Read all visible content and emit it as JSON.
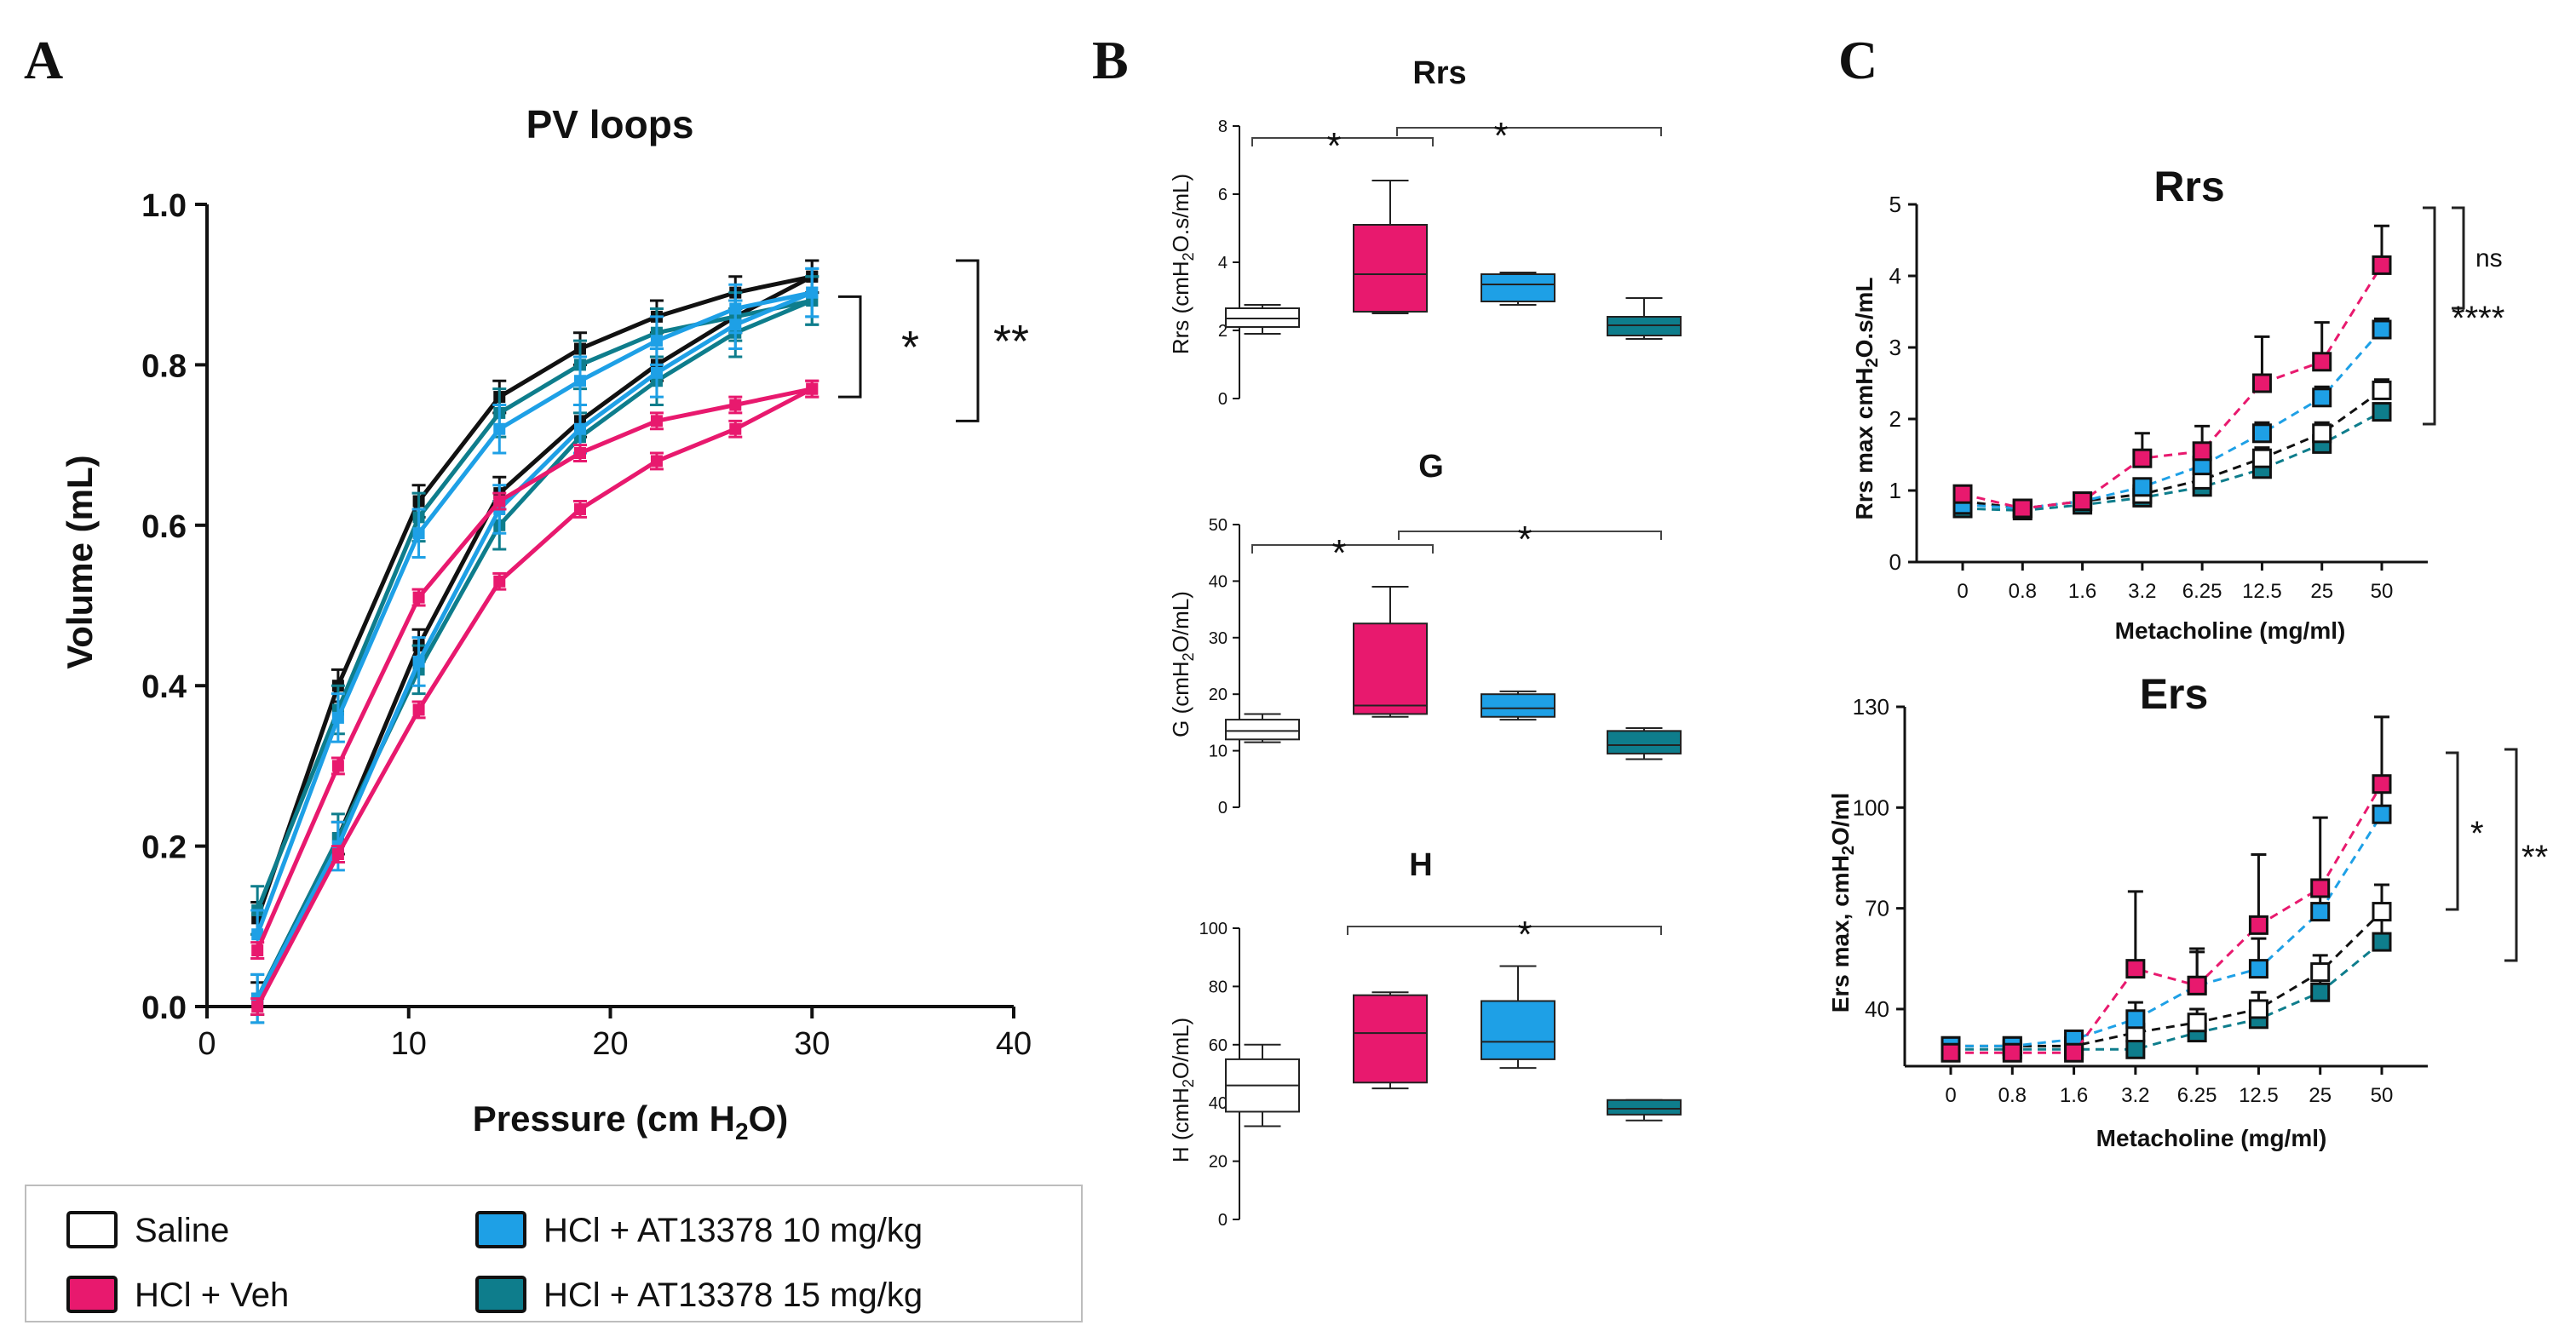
{
  "panel_letters": {
    "a": "A",
    "b": "B",
    "c": "C"
  },
  "colors": {
    "saline": "#ffffff",
    "veh": "#e8196e",
    "at10": "#1ea0e6",
    "at15": "#0e7d8c",
    "saline_line": "#111111"
  },
  "legend": [
    {
      "label": "Saline",
      "color": "#ffffff"
    },
    {
      "label": "HCl + Veh",
      "color": "#e8196e"
    },
    {
      "label": "HCl + AT13378 10 mg/kg",
      "color": "#1ea0e6"
    },
    {
      "label": "HCl + AT13378 15 mg/kg",
      "color": "#0e7d8c"
    }
  ],
  "chart_data": [
    {
      "id": "pv",
      "type": "line",
      "title": "PV loops",
      "xlabel": "Pressure (cm H",
      "xlabel_sub": "2",
      "xlabel_end": "O)",
      "ylabel": "Volume (mL)",
      "xlim": [
        0,
        40
      ],
      "ylim": [
        0,
        1.0
      ],
      "xticks": [
        "0",
        "10",
        "20",
        "30",
        "40"
      ],
      "yticks": [
        "0.0",
        "0.2",
        "0.4",
        "0.6",
        "0.8",
        "1.0"
      ],
      "sig": [
        "*",
        "**"
      ],
      "series": [
        {
          "name": "Saline inflation",
          "group": "saline",
          "x": [
            2.5,
            6.5,
            10.5,
            14.5,
            18.5,
            22.3,
            26.2,
            30
          ],
          "values": [
            0.11,
            0.4,
            0.63,
            0.76,
            0.82,
            0.86,
            0.89,
            0.91
          ],
          "err": 0.02
        },
        {
          "name": "Saline deflation",
          "group": "saline",
          "x": [
            2.5,
            6.5,
            10.5,
            14.5,
            18.5,
            22.3,
            26.2,
            30
          ],
          "values": [
            0.01,
            0.21,
            0.45,
            0.64,
            0.73,
            0.8,
            0.86,
            0.91
          ],
          "err": 0.02
        },
        {
          "name": "HCl + Veh inflation",
          "group": "veh",
          "x": [
            2.5,
            6.5,
            10.5,
            14.5,
            18.5,
            22.3,
            26.2,
            30
          ],
          "values": [
            0.07,
            0.3,
            0.51,
            0.63,
            0.69,
            0.73,
            0.75,
            0.77
          ],
          "err": 0.01
        },
        {
          "name": "HCl + Veh deflation",
          "group": "veh",
          "x": [
            2.5,
            6.5,
            10.5,
            14.5,
            18.5,
            22.3,
            26.2,
            30
          ],
          "values": [
            0.0,
            0.19,
            0.37,
            0.53,
            0.62,
            0.68,
            0.72,
            0.77
          ],
          "err": 0.01
        },
        {
          "name": "AT13378 10 mg/kg inflation",
          "group": "at10",
          "x": [
            2.5,
            6.5,
            10.5,
            14.5,
            18.5,
            22.3,
            26.2,
            30
          ],
          "values": [
            0.09,
            0.36,
            0.59,
            0.72,
            0.78,
            0.83,
            0.87,
            0.89
          ],
          "err": 0.03
        },
        {
          "name": "AT13378 10 mg/kg deflation",
          "group": "at10",
          "x": [
            2.5,
            6.5,
            10.5,
            14.5,
            18.5,
            22.3,
            26.2,
            30
          ],
          "values": [
            0.01,
            0.2,
            0.43,
            0.62,
            0.72,
            0.79,
            0.85,
            0.89
          ],
          "err": 0.03
        },
        {
          "name": "AT13378 15 mg/kg inflation",
          "group": "at15",
          "x": [
            2.5,
            6.5,
            10.5,
            14.5,
            18.5,
            22.3,
            26.2,
            30
          ],
          "values": [
            0.12,
            0.37,
            0.61,
            0.74,
            0.8,
            0.84,
            0.86,
            0.88
          ],
          "err": 0.03
        },
        {
          "name": "AT13378 15 mg/kg deflation",
          "group": "at15",
          "x": [
            2.5,
            6.5,
            10.5,
            14.5,
            18.5,
            22.3,
            26.2,
            30
          ],
          "values": [
            0.01,
            0.21,
            0.42,
            0.6,
            0.71,
            0.78,
            0.84,
            0.88
          ],
          "err": 0.03
        }
      ]
    },
    {
      "id": "rrs_box",
      "type": "box",
      "title": "Rrs",
      "ylabel": "Rrs  (cmH",
      "ylabel_sub": "2",
      "ylabel_end": "O.s/mL)",
      "ylim": [
        0,
        8
      ],
      "yticks": [
        "0",
        "2",
        "4",
        "6",
        "8"
      ],
      "sig": [
        "*",
        "*"
      ],
      "groups": [
        {
          "name": "Saline",
          "min": 1.9,
          "q1": 2.1,
          "median": 2.35,
          "q3": 2.65,
          "max": 2.75
        },
        {
          "name": "HCl + Veh",
          "min": 2.5,
          "q1": 2.55,
          "median": 3.65,
          "q3": 5.1,
          "max": 6.4
        },
        {
          "name": "HCl + AT13378 10 mg/kg",
          "min": 2.75,
          "q1": 2.85,
          "median": 3.35,
          "q3": 3.65,
          "max": 3.7
        },
        {
          "name": "HCl + AT13378 15 mg/kg",
          "min": 1.75,
          "q1": 1.85,
          "median": 2.15,
          "q3": 2.4,
          "max": 2.95
        }
      ]
    },
    {
      "id": "g_box",
      "type": "box",
      "title": "G",
      "ylabel": "G (cmH",
      "ylabel_sub": "2",
      "ylabel_end": "O/mL)",
      "ylim": [
        0,
        50
      ],
      "yticks": [
        "0",
        "10",
        "20",
        "30",
        "40",
        "50"
      ],
      "sig": [
        "*",
        "*"
      ],
      "groups": [
        {
          "name": "Saline",
          "min": 11.5,
          "q1": 12,
          "median": 13.5,
          "q3": 15.5,
          "max": 16.5
        },
        {
          "name": "HCl + Veh",
          "min": 16,
          "q1": 16.5,
          "median": 18,
          "q3": 32.5,
          "max": 39
        },
        {
          "name": "HCl + AT13378 10 mg/kg",
          "min": 15.5,
          "q1": 16,
          "median": 17.5,
          "q3": 20,
          "max": 20.5
        },
        {
          "name": "HCl + AT13378 15 mg/kg",
          "min": 8.5,
          "q1": 9.5,
          "median": 11,
          "q3": 13.5,
          "max": 14
        }
      ]
    },
    {
      "id": "h_box",
      "type": "box",
      "title": "H",
      "ylabel": "H (cmH",
      "ylabel_sub": "2",
      "ylabel_end": "O/mL)",
      "ylim": [
        0,
        100
      ],
      "yticks": [
        "0",
        "20",
        "40",
        "60",
        "80",
        "100"
      ],
      "sig": [
        "*"
      ],
      "groups": [
        {
          "name": "Saline",
          "min": 32,
          "q1": 37,
          "median": 46,
          "q3": 55,
          "max": 60
        },
        {
          "name": "HCl + Veh",
          "min": 45,
          "q1": 47,
          "median": 64,
          "q3": 77,
          "max": 78
        },
        {
          "name": "HCl + AT13378 10 mg/kg",
          "min": 52,
          "q1": 55,
          "median": 61,
          "q3": 75,
          "max": 87
        },
        {
          "name": "HCl + AT13378 15 mg/kg",
          "min": 34,
          "q1": 36,
          "median": 38,
          "q3": 41,
          "max": 41
        }
      ]
    },
    {
      "id": "rrs_mch",
      "type": "line",
      "title": "Rrs",
      "xlabel": "Metacholine (mg/ml)",
      "ylabel": "Rrs max cmH",
      "ylabel_sub": "2",
      "ylabel_end": "O.s/mL",
      "categories": [
        "0",
        "0.8",
        "1.6",
        "3.2",
        "6.25",
        "12.5",
        "25",
        "50"
      ],
      "ylim": [
        0,
        5
      ],
      "yticks": [
        "0",
        "1",
        "2",
        "3",
        "4",
        "5"
      ],
      "sig": [
        "ns",
        "****"
      ],
      "series": [
        {
          "name": "Saline",
          "group": "saline",
          "values": [
            0.85,
            0.75,
            0.85,
            0.95,
            1.15,
            1.45,
            1.8,
            2.4
          ],
          "err": [
            0.05,
            0.04,
            0.05,
            0.1,
            0.1,
            0.15,
            0.15,
            0.15
          ]
        },
        {
          "name": "HCl + Veh",
          "group": "veh",
          "values": [
            0.95,
            0.75,
            0.85,
            1.45,
            1.55,
            2.5,
            2.8,
            4.15
          ],
          "err": [
            0.05,
            0.05,
            0.05,
            0.35,
            0.35,
            0.65,
            0.55,
            0.55
          ]
        },
        {
          "name": "HCl + AT13378 10 mg/kg",
          "group": "at10",
          "values": [
            0.8,
            0.75,
            0.85,
            1.05,
            1.35,
            1.8,
            2.3,
            3.25
          ],
          "err": [
            0.05,
            0.05,
            0.05,
            0.1,
            0.15,
            0.15,
            0.15,
            0.15
          ]
        },
        {
          "name": "HCl + AT13378 15 mg/kg",
          "group": "at15",
          "values": [
            0.75,
            0.72,
            0.8,
            0.9,
            1.05,
            1.3,
            1.65,
            2.1
          ],
          "err": [
            0.04,
            0.04,
            0.04,
            0.05,
            0.05,
            0.05,
            0.08,
            0.1
          ]
        }
      ]
    },
    {
      "id": "ers_mch",
      "type": "line",
      "title": "Ers",
      "xlabel": "Metacholine (mg/ml)",
      "ylabel": "Ers max, cmH",
      "ylabel_sub": "2",
      "ylabel_end": "O/ml",
      "categories": [
        "0",
        "0.8",
        "1.6",
        "3.2",
        "6.25",
        "12.5",
        "25",
        "50"
      ],
      "ylim": [
        23,
        130
      ],
      "yticks": [
        "40",
        "70",
        "100",
        "130"
      ],
      "sig": [
        "*",
        "**"
      ],
      "series": [
        {
          "name": "Saline",
          "group": "saline",
          "values": [
            29,
            29,
            29,
            33,
            36,
            40,
            51,
            69
          ],
          "err": [
            1.5,
            1.5,
            2,
            3,
            4,
            5,
            5,
            8
          ]
        },
        {
          "name": "HCl + Veh",
          "group": "veh",
          "values": [
            27,
            27,
            27,
            52,
            47,
            65,
            76,
            107
          ],
          "err": [
            1.5,
            1.5,
            2,
            23,
            11,
            21,
            21,
            20
          ]
        },
        {
          "name": "HCl + AT13378 10 mg/kg",
          "group": "at10",
          "values": [
            29,
            29,
            31,
            37,
            47,
            52,
            69,
            98
          ],
          "err": [
            1.5,
            1.5,
            2,
            5,
            10,
            9,
            9,
            9
          ]
        },
        {
          "name": "HCl + AT13378 15 mg/kg",
          "group": "at15",
          "values": [
            28,
            28,
            28,
            28,
            33,
            37,
            45,
            60
          ],
          "err": [
            1.5,
            1.5,
            1.5,
            2,
            3,
            3,
            5,
            9
          ]
        }
      ]
    }
  ]
}
